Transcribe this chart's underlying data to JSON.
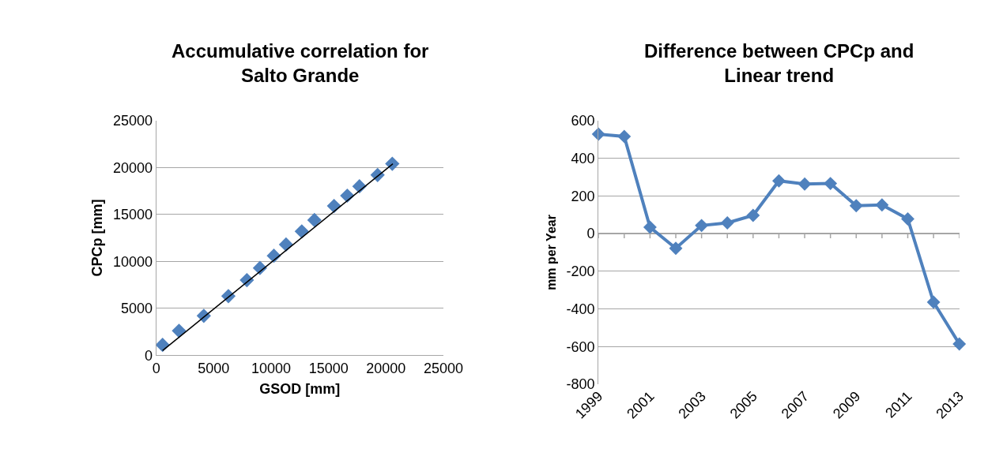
{
  "chart_data": [
    {
      "type": "scatter",
      "title": "Accumulative correlation for Salto Grande",
      "xlabel": "GSOD [mm]",
      "ylabel": "CPCp [mm]",
      "x": [
        550,
        1980,
        4140,
        6280,
        7890,
        9030,
        10240,
        11300,
        12670,
        13770,
        15480,
        16630,
        17690,
        19270,
        20550
      ],
      "series": [
        {
          "color": "#4f81bd",
          "values": [
            1100,
            2600,
            4200,
            6300,
            8000,
            9300,
            10600,
            11800,
            13200,
            14400,
            15900,
            17000,
            18000,
            19200,
            20400
          ]
        },
        {
          "type": "line",
          "color": "#000000",
          "x": [
            550,
            20600
          ],
          "values": [
            500,
            20400
          ],
          "marker": "none"
        }
      ],
      "xlim": [
        0,
        25000
      ],
      "xticks": [
        0,
        5000,
        10000,
        15000,
        20000,
        25000
      ],
      "ylim": [
        0,
        25000
      ],
      "yticks": [
        0,
        5000,
        10000,
        15000,
        20000,
        25000
      ],
      "grid": "y",
      "marker": "diamond"
    },
    {
      "type": "line",
      "title": "Difference between CPCp and Linear trend",
      "ylabel": "mm per Year",
      "categories": [
        "1999",
        null,
        "2001",
        null,
        "2003",
        null,
        "2005",
        null,
        "2007",
        null,
        "2009",
        null,
        "2011",
        null,
        "2013"
      ],
      "series": [
        {
          "color": "#4f81bd",
          "values": [
            528,
            516,
            34,
            -78,
            43,
            57,
            97,
            280,
            263,
            266,
            148,
            152,
            78,
            -364,
            -586
          ]
        }
      ],
      "ylim": [
        -800,
        600
      ],
      "yticks": [
        -800,
        -600,
        -400,
        -200,
        0,
        200,
        400,
        600
      ],
      "grid": "y",
      "marker": "diamond",
      "line_style": "solid"
    }
  ]
}
